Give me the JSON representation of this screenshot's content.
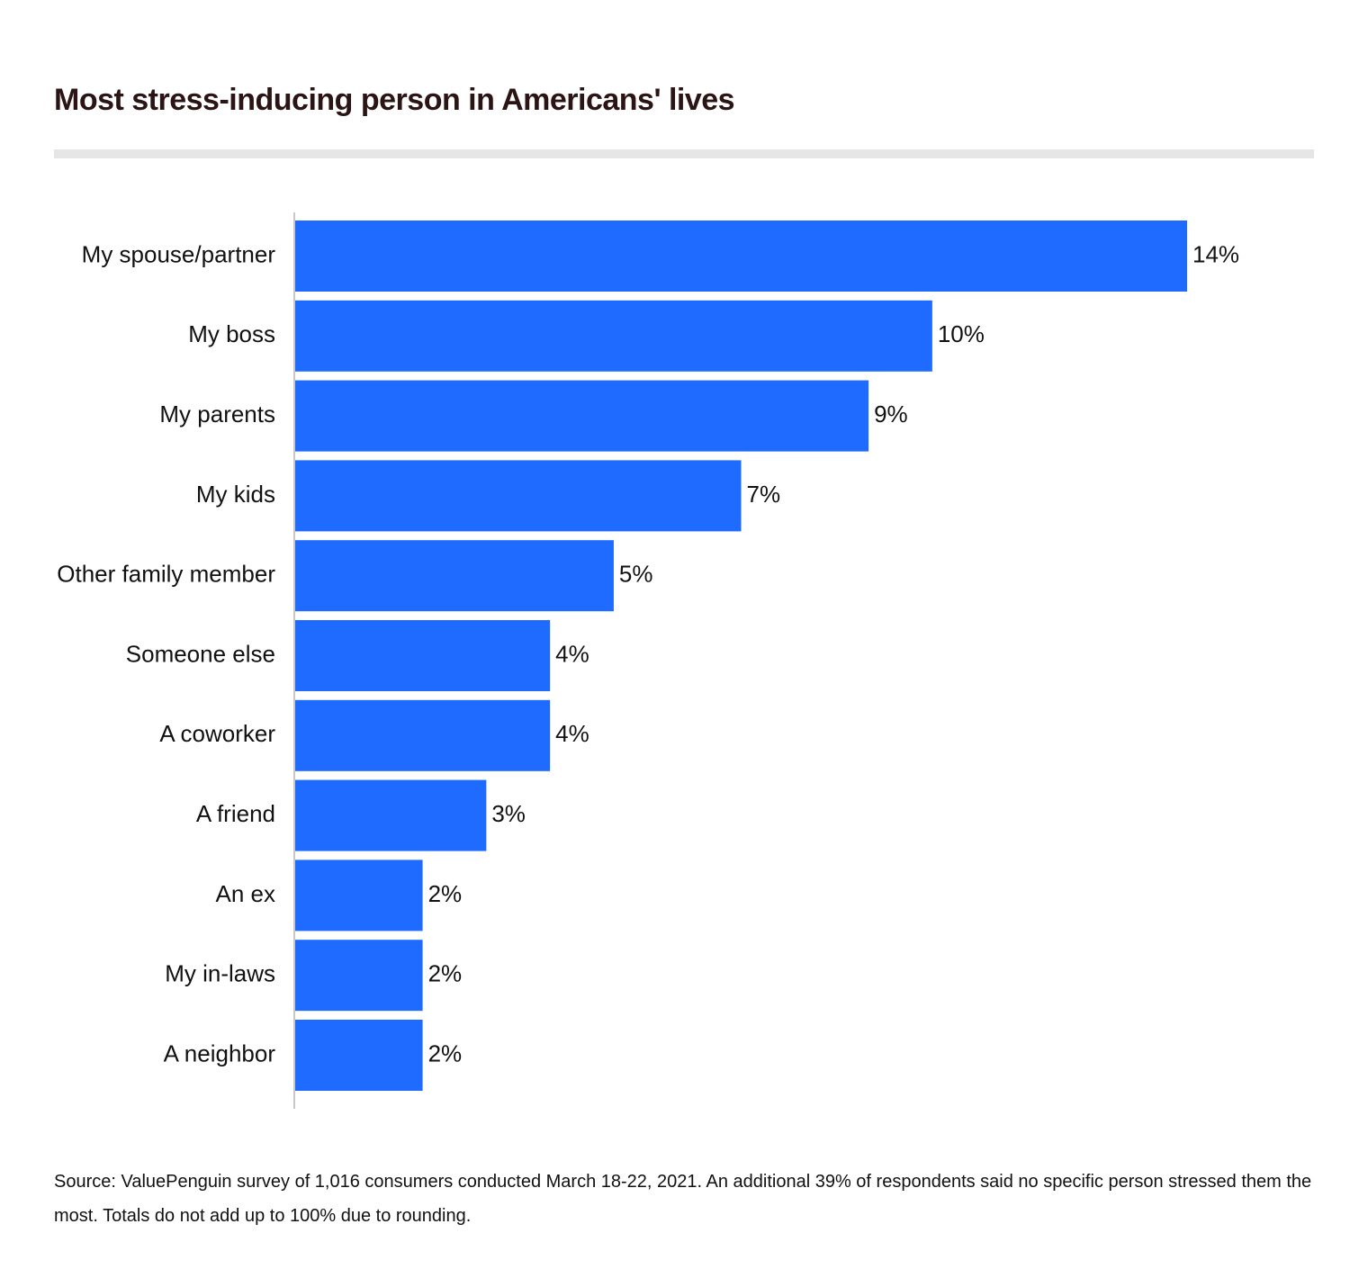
{
  "chart_data": {
    "type": "bar",
    "orientation": "horizontal",
    "title": "Most stress-inducing person in Americans' lives",
    "categories": [
      "My spouse/partner",
      "My boss",
      "My parents",
      "My kids",
      "Other family member",
      "Someone else",
      "A coworker",
      "A friend",
      "An ex",
      "My in-laws",
      "A neighbor"
    ],
    "values": [
      14,
      10,
      9,
      7,
      5,
      4,
      4,
      3,
      2,
      2,
      2
    ],
    "value_labels": [
      "14%",
      "10%",
      "9%",
      "7%",
      "5%",
      "4%",
      "4%",
      "3%",
      "2%",
      "2%",
      "2%"
    ],
    "xlim": [
      0,
      14
    ],
    "grid": false,
    "bar_color": "#1f6bff",
    "source": "Source: ValuePenguin survey of 1,016 consumers conducted March 18-22, 2021. An additional 39% of respondents said no specific person stressed them the most. Totals do not add up to 100% due to rounding."
  }
}
